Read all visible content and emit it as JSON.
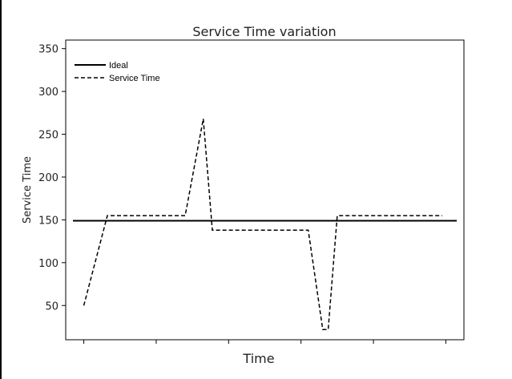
{
  "chart_data": {
    "type": "line",
    "title": "Service Time variation",
    "xlabel": "Time",
    "ylabel": "Service Time",
    "ylim": [
      10,
      360
    ],
    "yticks": [
      50,
      100,
      150,
      200,
      250,
      300,
      350
    ],
    "xlim": [
      -0.05,
      1.05
    ],
    "xticks_count": 6,
    "grid": false,
    "legend_position": "top-left",
    "series": [
      {
        "name": "Ideal",
        "style": "solid",
        "color": "#000000",
        "x": [
          -0.03,
          1.03
        ],
        "y": [
          149,
          149
        ]
      },
      {
        "name": "Service Time",
        "style": "dashed",
        "color": "#000000",
        "x": [
          0.0,
          0.065,
          0.28,
          0.33,
          0.355,
          0.62,
          0.66,
          0.675,
          0.7,
          0.99
        ],
        "y": [
          50,
          155,
          155,
          268,
          138,
          138,
          22,
          22,
          155,
          155
        ]
      }
    ]
  }
}
